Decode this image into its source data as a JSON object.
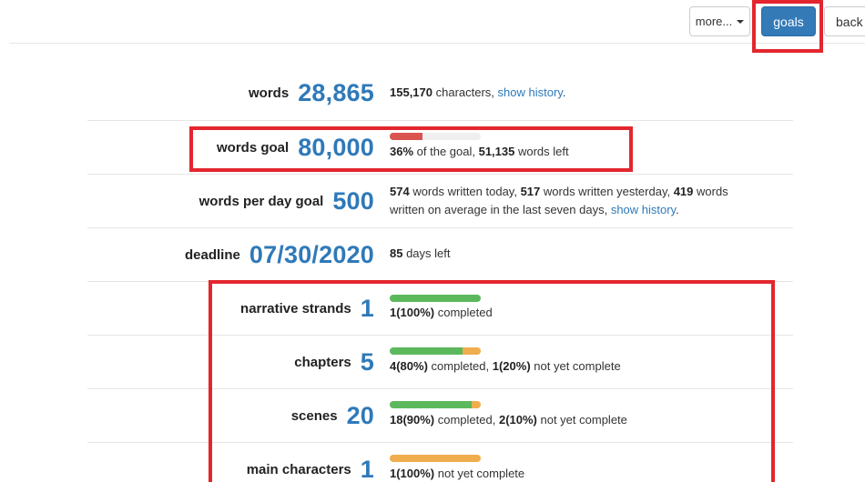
{
  "toolbar": {
    "more_label": "more...",
    "goals_label": "goals",
    "back_label": "back"
  },
  "stats": {
    "words": {
      "label": "words",
      "value": "28,865",
      "characters": "155,170",
      "characters_text": " characters, ",
      "history_link": "show history",
      "period": "."
    },
    "words_goal": {
      "label": "words goal",
      "value": "80,000",
      "percent": "36%",
      "percent_text": " of the goal, ",
      "words_left": "51,135",
      "words_left_text": " words left",
      "progress": 0.36
    },
    "words_per_day": {
      "label": "words per day goal",
      "value": "500",
      "today": "574",
      "today_text": " words written today, ",
      "yesterday": "517",
      "yesterday_text": " words written yesterday, ",
      "average": "419",
      "average_text": " words",
      "line2_text": "written on average in the last seven days, ",
      "history_link": "show history",
      "period": "."
    },
    "deadline": {
      "label": "deadline",
      "value": "07/30/2020",
      "days_left": "85",
      "days_left_text": " days left"
    },
    "narrative_strands": {
      "label": "narrative strands",
      "value": "1",
      "completed": "1(100%)",
      "completed_text": " completed",
      "progress_completed": 1.0,
      "progress_incomplete": 0.0
    },
    "chapters": {
      "label": "chapters",
      "value": "5",
      "completed": "4(80%)",
      "completed_text": " completed, ",
      "incomplete": "1(20%)",
      "incomplete_text": " not yet complete",
      "progress_completed": 0.8,
      "progress_incomplete": 0.2
    },
    "scenes": {
      "label": "scenes",
      "value": "20",
      "completed": "18(90%)",
      "completed_text": " completed, ",
      "incomplete": "2(10%)",
      "incomplete_text": " not yet complete",
      "progress_completed": 0.9,
      "progress_incomplete": 0.1
    },
    "main_characters": {
      "label": "main characters",
      "value": "1",
      "incomplete": "1(100%)",
      "incomplete_text": " not yet complete",
      "progress_completed": 0.0,
      "progress_incomplete": 1.0
    }
  },
  "colors": {
    "accent": "#2f79b9",
    "primary_button": "#337ab7",
    "annotation": "#e3262e",
    "progress_red": "#d9534f",
    "progress_green": "#5cb85c",
    "progress_orange": "#f0ad4e"
  }
}
